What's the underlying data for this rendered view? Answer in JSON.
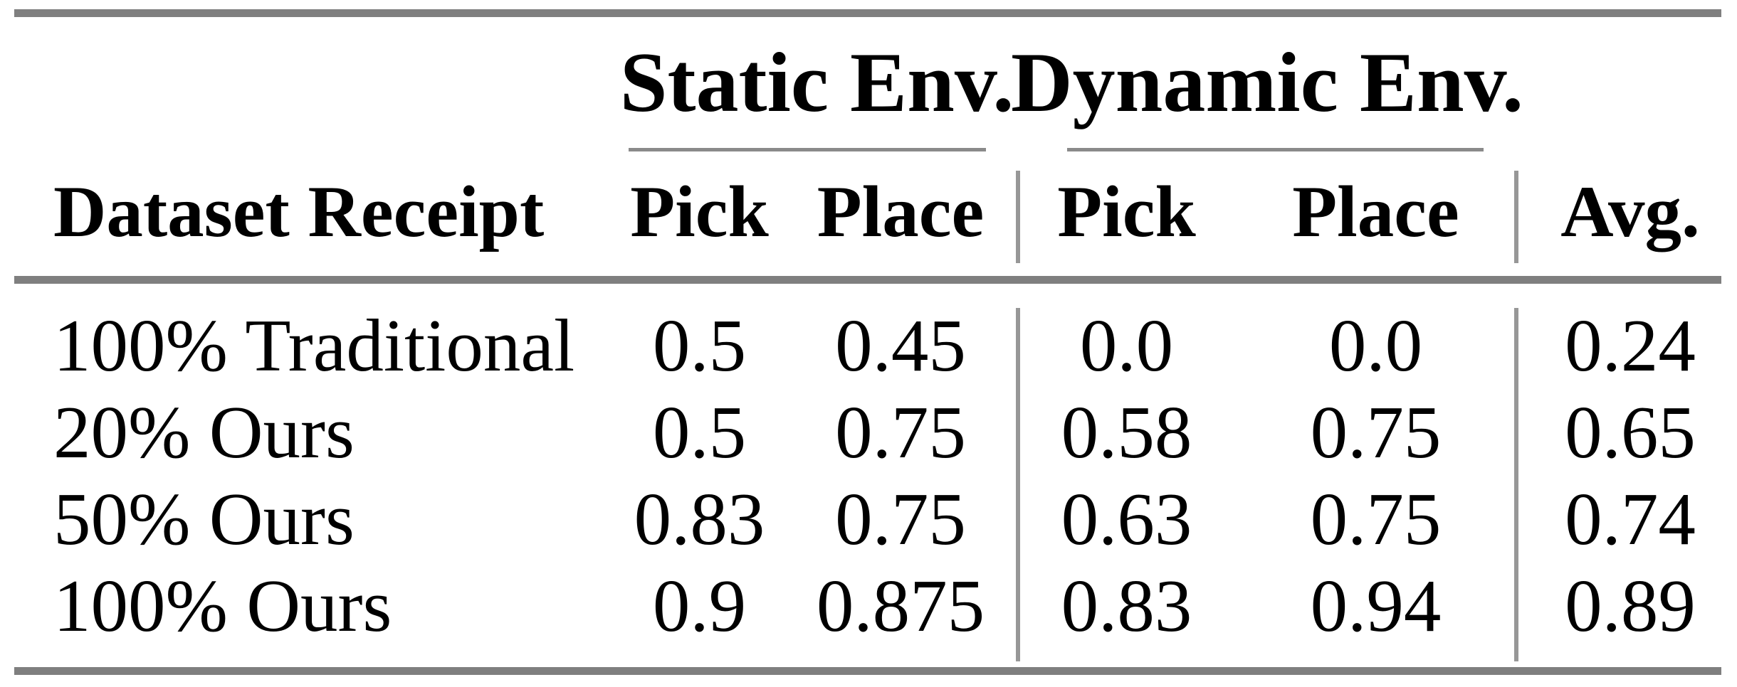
{
  "table": {
    "group_headers": {
      "static": "Static Env.",
      "dynamic": "Dynamic Env."
    },
    "column_headers": {
      "row_label": "Dataset Receipt",
      "static_pick": "Pick",
      "static_place": "Place",
      "dynamic_pick": "Pick",
      "dynamic_place": "Place",
      "avg": "Avg."
    },
    "rows": [
      {
        "label": "100% Traditional",
        "static_pick": "0.5",
        "static_place": "0.45",
        "dynamic_pick": "0.0",
        "dynamic_place": "0.0",
        "avg": "0.24"
      },
      {
        "label": "20% Ours",
        "static_pick": "0.5",
        "static_place": "0.75",
        "dynamic_pick": "0.58",
        "dynamic_place": "0.75",
        "avg": "0.65"
      },
      {
        "label": "50% Ours",
        "static_pick": "0.83",
        "static_place": "0.75",
        "dynamic_pick": "0.63",
        "dynamic_place": "0.75",
        "avg": "0.74"
      },
      {
        "label": "100% Ours",
        "static_pick": "0.9",
        "static_place": "0.875",
        "dynamic_pick": "0.83",
        "dynamic_place": "0.94",
        "avg": "0.89"
      }
    ],
    "colors": {
      "thick_rule": "#7f7f7f",
      "thin_rule": "#8a8a8a",
      "vertical_rule": "#979797",
      "text": "#000000"
    }
  },
  "chart_data": {
    "type": "table",
    "title": "",
    "column_groups": [
      "Static Env.",
      "Dynamic Env."
    ],
    "columns": [
      "Dataset Receipt",
      "Static Env. Pick",
      "Static Env. Place",
      "Dynamic Env. Pick",
      "Dynamic Env. Place",
      "Avg."
    ],
    "rows": [
      [
        "100% Traditional",
        0.5,
        0.45,
        0.0,
        0.0,
        0.24
      ],
      [
        "20% Ours",
        0.5,
        0.75,
        0.58,
        0.75,
        0.65
      ],
      [
        "50% Ours",
        0.83,
        0.75,
        0.63,
        0.75,
        0.74
      ],
      [
        "100% Ours",
        0.9,
        0.875,
        0.83,
        0.94,
        0.89
      ]
    ]
  }
}
